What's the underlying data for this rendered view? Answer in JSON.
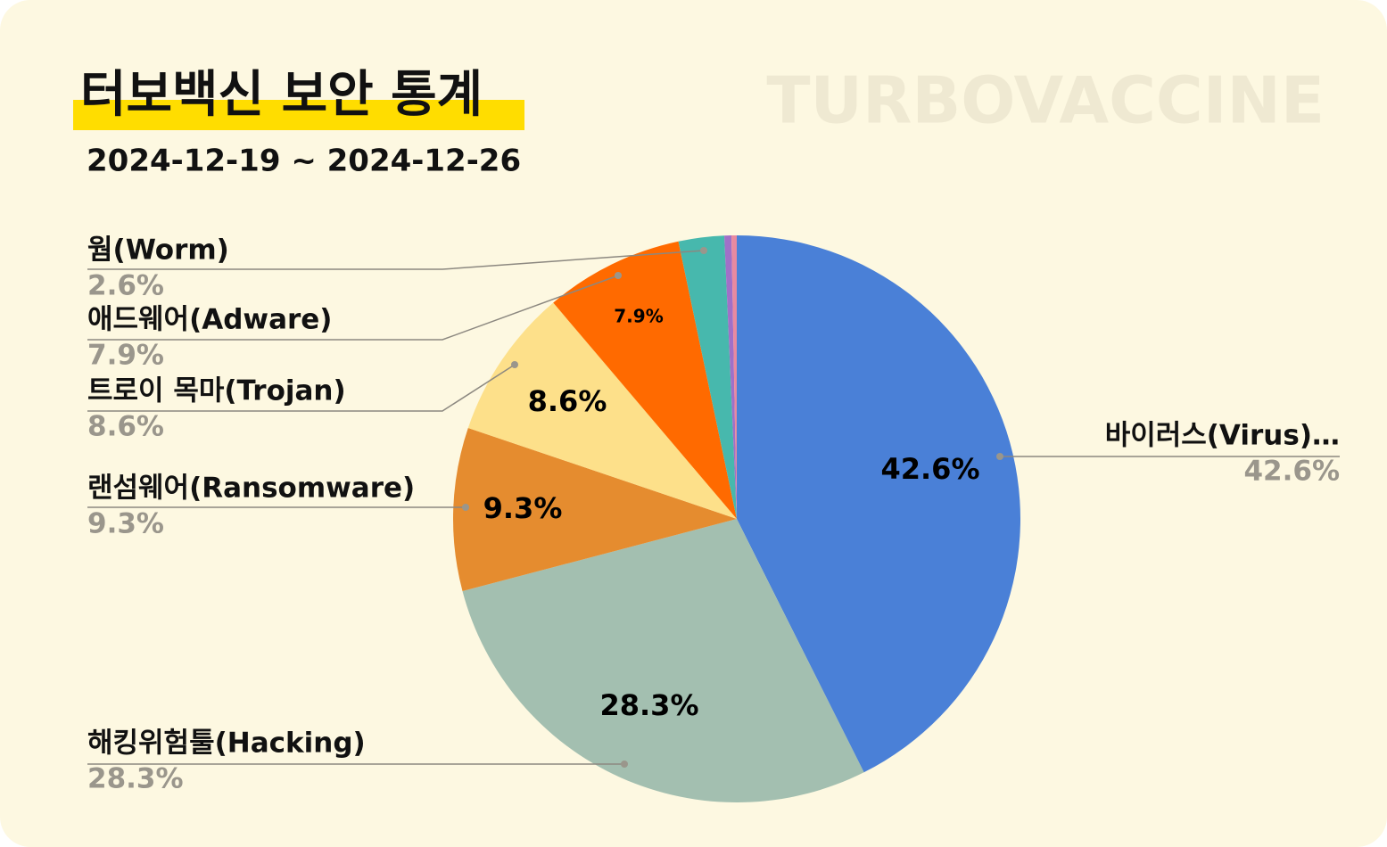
{
  "chart_data": {
    "type": "pie",
    "title": "터보백신 보안 통계",
    "subtitle": "2024-12-19 ~ 2024-12-26",
    "watermark": "TURBOVACCINE",
    "categories": [
      "바이러스(Virus)…",
      "해킹위험툴(Hacking)",
      "랜섬웨어(Ransomware)",
      "트로이 목마(Trojan)",
      "애드웨어(Adware)",
      "웜(Worm)",
      null,
      null
    ],
    "values": [
      42.6,
      28.3,
      9.3,
      8.6,
      7.9,
      2.6,
      0.4,
      0.3
    ],
    "value_labels": [
      "42.6%",
      "28.3%",
      "9.3%",
      "8.6%",
      "7.9%",
      "2.6%",
      null,
      null
    ],
    "colors": [
      "#4a80d7",
      "#a3bfb0",
      "#e58c2f",
      "#fde08a",
      "#ff6a00",
      "#47b8ad",
      "#a070c8",
      "#e88aa0"
    ]
  }
}
